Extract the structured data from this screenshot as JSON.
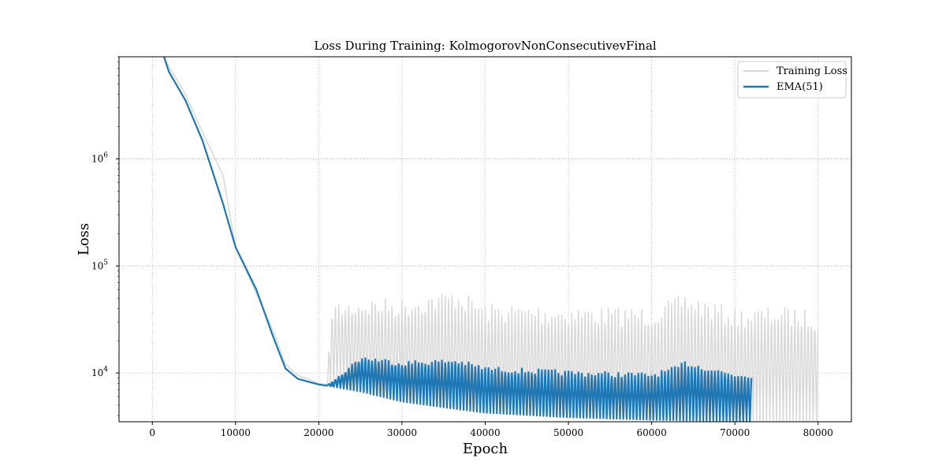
{
  "chart_data": {
    "type": "line",
    "title": "Loss During Training: KolmogorovNonConsecutivevFinal",
    "xlabel": "Epoch",
    "ylabel": "Loss",
    "yscale": "log",
    "xlim": [
      -4000,
      84000
    ],
    "ylim": [
      3500,
      9000000
    ],
    "x_ticks": [
      0,
      10000,
      20000,
      30000,
      40000,
      50000,
      60000,
      70000,
      80000
    ],
    "x_tick_labels": [
      "0",
      "10000",
      "20000",
      "30000",
      "40000",
      "50000",
      "60000",
      "70000",
      "80000"
    ],
    "y_ticks": [
      10000,
      100000,
      1000000
    ],
    "y_tick_labels": [
      {
        "base": "10",
        "exp": "4"
      },
      {
        "base": "10",
        "exp": "5"
      },
      {
        "base": "10",
        "exp": "6"
      }
    ],
    "grid": true,
    "legend_position": "top-right",
    "series": [
      {
        "name": "Training Loss",
        "color": "#d9d9d9",
        "x": [
          0,
          1500,
          4000,
          6000,
          8500,
          10000,
          12500,
          14500,
          16000,
          17500,
          20000,
          21000,
          21500,
          25000,
          30000,
          36500,
          40000,
          50000,
          60000,
          64000,
          70000,
          72000,
          75000,
          80000
        ],
        "values": [
          20000000,
          8500000,
          4000000,
          1800000,
          700000,
          150000,
          55000,
          25000,
          12000,
          9500,
          8000,
          7800,
          45000,
          50000,
          50000,
          60000,
          45000,
          42000,
          41000,
          55000,
          40000,
          40000,
          42000,
          38000
        ],
        "low_values": [
          20000000,
          8500000,
          4000000,
          1800000,
          700000,
          150000,
          55000,
          25000,
          12000,
          9500,
          8000,
          7800,
          7600,
          6800,
          5500,
          4700,
          4300,
          3900,
          3700,
          3600,
          3500,
          3400,
          3400,
          3400
        ]
      },
      {
        "name": "EMA(51)",
        "color": "#1f77b4",
        "x": [
          0,
          1500,
          2000,
          4000,
          6000,
          8500,
          10000,
          12500,
          14500,
          16000,
          17500,
          20000,
          21000,
          25000,
          30000,
          36500,
          40000,
          50000,
          60000,
          63000,
          64000,
          70000,
          72000
        ],
        "values": [
          20000000,
          8500000,
          6500000,
          3500000,
          1500000,
          380000,
          150000,
          60000,
          22000,
          11000,
          8800,
          7800,
          7600,
          14500,
          13000,
          13500,
          11500,
          10500,
          10000,
          11500,
          13000,
          10000,
          10000
        ],
        "low_values": [
          20000000,
          8500000,
          6500000,
          3500000,
          1500000,
          380000,
          150000,
          60000,
          22000,
          11000,
          8800,
          7800,
          7600,
          6700,
          5400,
          4600,
          4250,
          3850,
          3650,
          3620,
          3600,
          3550,
          3500
        ]
      }
    ]
  }
}
